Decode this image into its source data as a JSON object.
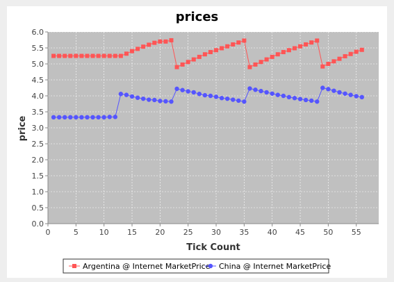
{
  "chart_data": {
    "type": "line",
    "title": "prices",
    "xlabel": "Tick Count",
    "ylabel": "price",
    "xlim": [
      0,
      59
    ],
    "ylim": [
      0,
      6.0
    ],
    "x_ticks": [
      0,
      5,
      10,
      15,
      20,
      25,
      30,
      35,
      40,
      45,
      50,
      55
    ],
    "y_ticks": [
      0.0,
      0.5,
      1.0,
      1.5,
      2.0,
      2.5,
      3.0,
      3.5,
      4.0,
      4.5,
      5.0,
      5.5,
      6.0
    ],
    "grid": true,
    "legend": "bottom",
    "plot_background": "#c0c0c0",
    "series": [
      {
        "name": "Argentina @ Internet MarketPrice",
        "color": "#ff5555",
        "marker": "square",
        "x": [
          1,
          2,
          3,
          4,
          5,
          6,
          7,
          8,
          9,
          10,
          11,
          12,
          13,
          14,
          15,
          16,
          17,
          18,
          19,
          20,
          21,
          22,
          23,
          24,
          25,
          26,
          27,
          28,
          29,
          30,
          31,
          32,
          33,
          34,
          35,
          36,
          37,
          38,
          39,
          40,
          41,
          42,
          43,
          44,
          45,
          46,
          47,
          48,
          49,
          50,
          51,
          52,
          53,
          54,
          55,
          56
        ],
        "values": [
          5.25,
          5.25,
          5.25,
          5.25,
          5.25,
          5.25,
          5.25,
          5.25,
          5.25,
          5.25,
          5.25,
          5.25,
          5.25,
          5.32,
          5.4,
          5.47,
          5.54,
          5.6,
          5.66,
          5.7,
          5.7,
          5.74,
          4.9,
          4.98,
          5.06,
          5.14,
          5.22,
          5.3,
          5.37,
          5.43,
          5.49,
          5.55,
          5.61,
          5.67,
          5.73,
          4.9,
          4.98,
          5.06,
          5.14,
          5.22,
          5.3,
          5.37,
          5.43,
          5.49,
          5.55,
          5.61,
          5.67,
          5.73,
          4.92,
          5.0,
          5.08,
          5.16,
          5.24,
          5.31,
          5.38,
          5.44
        ]
      },
      {
        "name": "China @ Internet MarketPrice",
        "color": "#5555ff",
        "marker": "circle",
        "x": [
          1,
          2,
          3,
          4,
          5,
          6,
          7,
          8,
          9,
          10,
          11,
          12,
          13,
          14,
          15,
          16,
          17,
          18,
          19,
          20,
          21,
          22,
          23,
          24,
          25,
          26,
          27,
          28,
          29,
          30,
          31,
          32,
          33,
          34,
          35,
          36,
          37,
          38,
          39,
          40,
          41,
          42,
          43,
          44,
          45,
          46,
          47,
          48,
          49,
          50,
          51,
          52,
          53,
          54,
          55,
          56
        ],
        "values": [
          3.33,
          3.33,
          3.33,
          3.33,
          3.33,
          3.33,
          3.33,
          3.33,
          3.33,
          3.33,
          3.34,
          3.34,
          4.06,
          4.03,
          3.98,
          3.94,
          3.91,
          3.88,
          3.87,
          3.84,
          3.83,
          3.82,
          4.22,
          4.18,
          4.14,
          4.11,
          4.06,
          4.02,
          4.0,
          3.97,
          3.93,
          3.91,
          3.88,
          3.85,
          3.82,
          4.23,
          4.19,
          4.15,
          4.11,
          4.07,
          4.03,
          4.0,
          3.96,
          3.93,
          3.9,
          3.87,
          3.85,
          3.82,
          4.25,
          4.21,
          4.16,
          4.11,
          4.07,
          4.03,
          3.99,
          3.96
        ]
      }
    ]
  }
}
